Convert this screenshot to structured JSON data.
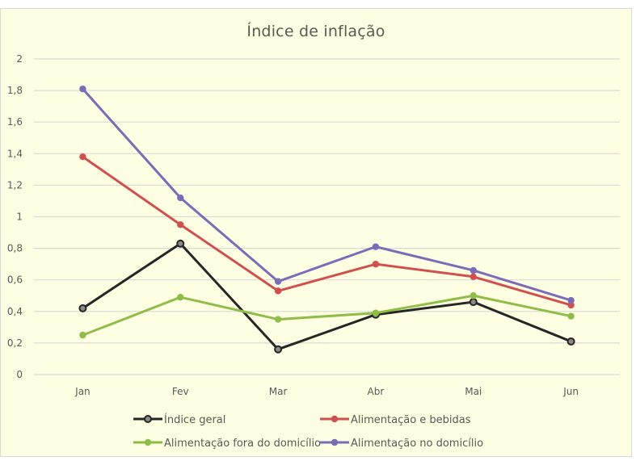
{
  "chart_data": {
    "type": "line",
    "title": "Índice de inflação",
    "xlabel": "",
    "ylabel": "",
    "categories": [
      "Jan",
      "Fev",
      "Mar",
      "Abr",
      "Mai",
      "Jun"
    ],
    "ylim": [
      0,
      2
    ],
    "yticks": [
      "0",
      "0,2",
      "0,4",
      "0,6",
      "0,8",
      "1",
      "1,2",
      "1,4",
      "1,6",
      "1,8",
      "2"
    ],
    "grid": true,
    "legend_position": "bottom",
    "series": [
      {
        "name": "Índice geral",
        "color": "#262626",
        "marker": "hollow-circle",
        "values": [
          0.42,
          0.83,
          0.16,
          0.38,
          0.46,
          0.21
        ]
      },
      {
        "name": "Alimentação e bebidas",
        "color": "#d0504f",
        "marker": "circle",
        "values": [
          1.38,
          0.95,
          0.53,
          0.7,
          0.62,
          0.44
        ]
      },
      {
        "name": "Alimentação fora do domicílio",
        "color": "#8fbd47",
        "marker": "circle",
        "values": [
          0.25,
          0.49,
          0.35,
          0.39,
          0.5,
          0.37
        ]
      },
      {
        "name": "Alimentação no domicílio",
        "color": "#7b6cb8",
        "marker": "circle",
        "values": [
          1.81,
          1.12,
          0.59,
          0.81,
          0.66,
          0.47
        ]
      }
    ]
  },
  "colors": {
    "background": "#fefee2",
    "gridline": "#d9d9d9",
    "text": "#595959"
  }
}
